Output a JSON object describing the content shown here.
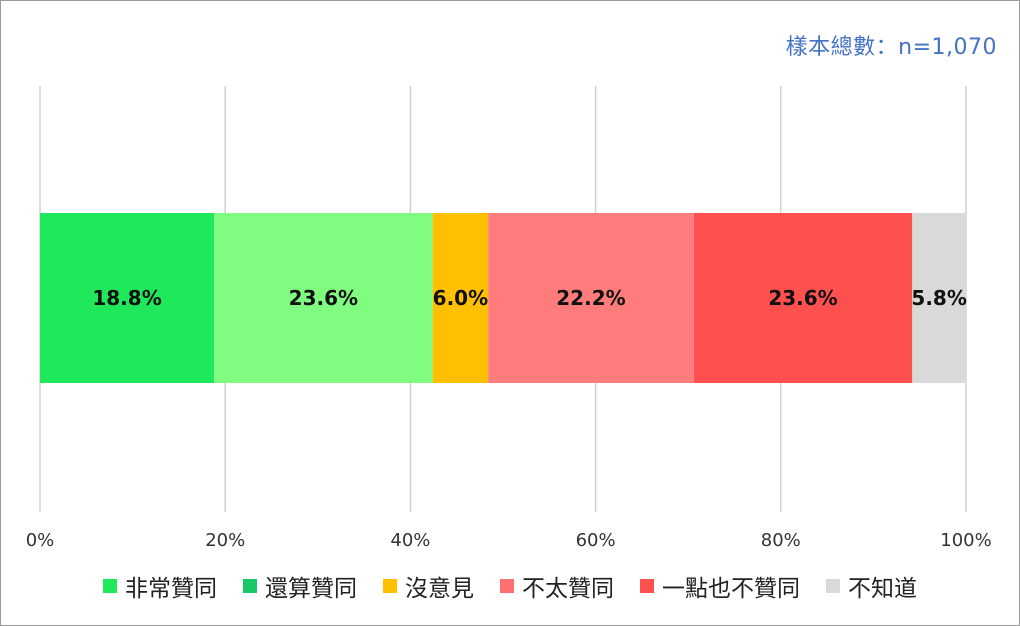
{
  "sample_note": "樣本總數：n=1,070",
  "chart_data": {
    "type": "bar",
    "orientation": "horizontal-stacked",
    "x_ticks": [
      "0%",
      "20%",
      "40%",
      "60%",
      "80%",
      "100%"
    ],
    "xlim": [
      0,
      100
    ],
    "grid": true,
    "legend_position": "bottom",
    "series": [
      {
        "name": "非常贊同",
        "value": 18.8,
        "label": "18.8%",
        "color": "#1fe85a"
      },
      {
        "name": "還算贊同",
        "value": 23.6,
        "label": "23.6%",
        "color": "#80fc80"
      },
      {
        "name": "沒意見",
        "value": 6.0,
        "label": "6.0%",
        "color": "#ffc000"
      },
      {
        "name": "不太贊同",
        "value": 22.2,
        "label": "22.2%",
        "color": "#ff7c7c"
      },
      {
        "name": "一點也不贊同",
        "value": 23.6,
        "label": "23.6%",
        "color": "#ff5050"
      },
      {
        "name": "不知道",
        "value": 5.8,
        "label": "5.8%",
        "color": "#d9d9d9"
      }
    ],
    "legend": [
      {
        "name": "非常贊同",
        "color": "#1fe85a"
      },
      {
        "name": "還算贊同",
        "color": "#17c868"
      },
      {
        "name": "沒意見",
        "color": "#ffc000"
      },
      {
        "name": "不太贊同",
        "color": "#ff7070"
      },
      {
        "name": "一點也不贊同",
        "color": "#ff5050"
      },
      {
        "name": "不知道",
        "color": "#d9d9d9"
      }
    ]
  }
}
